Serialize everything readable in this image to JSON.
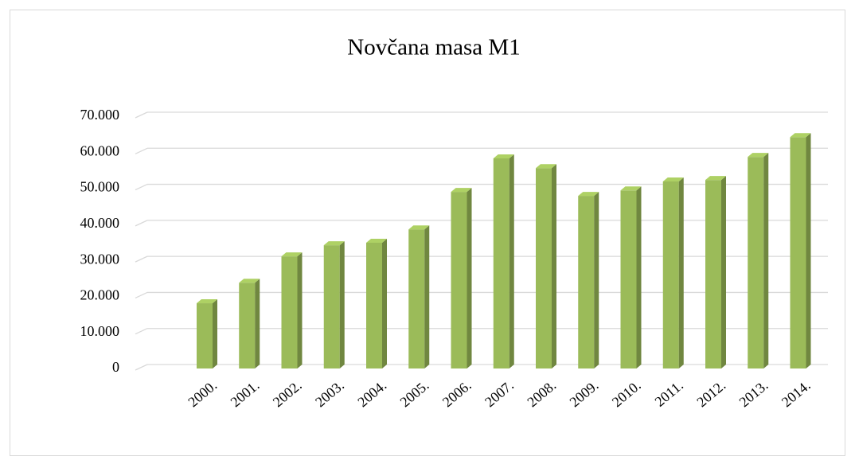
{
  "chart_data": {
    "type": "bar3d",
    "title": "Novčana masa M1",
    "categories": [
      "2000.",
      "2001.",
      "2002.",
      "2003.",
      "2004.",
      "2005.",
      "2006.",
      "2007.",
      "2008.",
      "2009.",
      "2010.",
      "2011.",
      "2012.",
      "2013.",
      "2014."
    ],
    "values": [
      18100,
      23800,
      31100,
      34200,
      34900,
      38600,
      49000,
      58300,
      55600,
      47900,
      49400,
      51900,
      52300,
      58700,
      64200
    ],
    "color": "#9bbb59",
    "ylim": [
      0,
      70000
    ],
    "yticks": [
      0,
      {
        "value": 10000,
        "label": "10.000"
      },
      {
        "value": 20000,
        "label": "20.000"
      },
      {
        "value": 30000,
        "label": "30.000"
      },
      {
        "value": 40000,
        "label": "40.000"
      },
      {
        "value": 50000,
        "label": "50.000"
      },
      {
        "value": 60000,
        "label": "60.000"
      },
      {
        "value": 70000,
        "label": "70.000"
      }
    ],
    "grid": true
  }
}
